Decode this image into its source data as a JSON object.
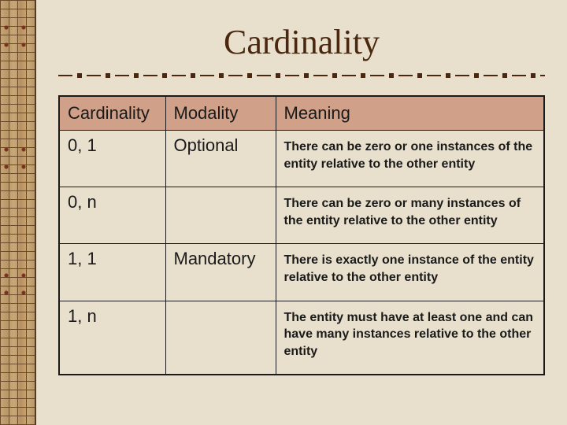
{
  "title": "Cardinality",
  "colors": {
    "background": "#e8e0cc",
    "title_text": "#4a2810",
    "border": "#1a1a1a",
    "header_bg": "#d0a088",
    "cell_text": "#1a1a1a",
    "divider": "#4a2810"
  },
  "typography": {
    "title_fontsize": 44,
    "header_fontsize": 22,
    "cell_fontsize_large": 22,
    "cell_fontsize_small": 16,
    "meaning_weight": "bold"
  },
  "table": {
    "columns": [
      "Cardinality",
      "Modality",
      "Meaning"
    ],
    "rows": [
      {
        "cardinality": "0, 1",
        "modality": "Optional",
        "meaning": "There can be zero or one instances of the entity relative to the other entity"
      },
      {
        "cardinality": "0, n",
        "modality": "",
        "meaning": "There can be zero or many instances of the entity relative to the other entity"
      },
      {
        "cardinality": "1, 1",
        "modality": "Mandatory",
        "meaning": "There is exactly one instance of the entity relative to the other entity"
      },
      {
        "cardinality": "1, n",
        "modality": "",
        "meaning": "The entity must have at least one and can have many instances relative to the other entity"
      }
    ]
  }
}
